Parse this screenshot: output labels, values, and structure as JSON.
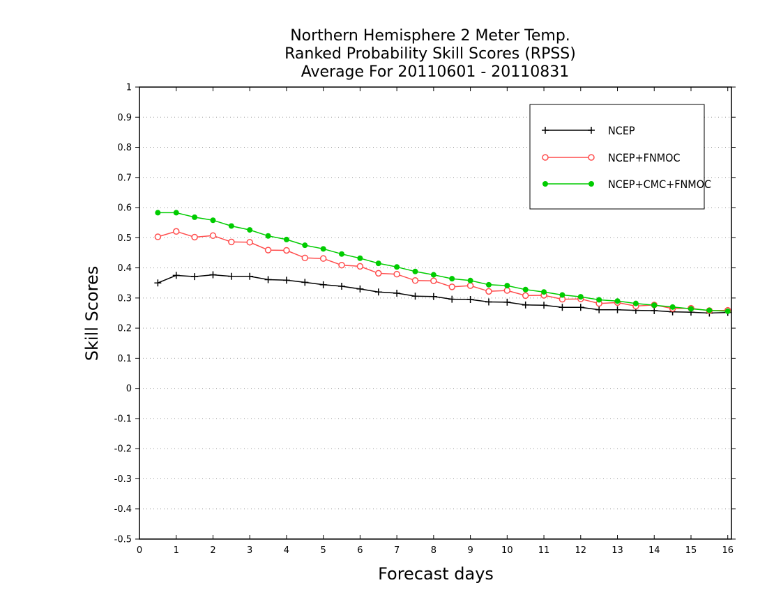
{
  "chart_data": {
    "type": "line",
    "title_lines": [
      "Northern Hemisphere 2 Meter Temp.",
      "Ranked Probability Skill Scores (RPSS)",
      "Average For 20110601 - 20110831"
    ],
    "xlabel": "Forecast days",
    "ylabel": "Skill Scores",
    "xlim": [
      0,
      16.1
    ],
    "ylim": [
      -0.5,
      1
    ],
    "x_ticks": [
      0,
      1,
      2,
      3,
      4,
      5,
      6,
      7,
      8,
      9,
      10,
      11,
      12,
      13,
      14,
      15,
      16
    ],
    "y_ticks": [
      -0.5,
      -0.4,
      -0.3,
      -0.2,
      -0.1,
      0,
      0.1,
      0.2,
      0.3,
      0.4,
      0.5,
      0.6,
      0.7,
      0.8,
      0.9,
      1
    ],
    "y_tick_labels": [
      "-0.5",
      "-0.4",
      "-0.3",
      "-0.2",
      "-0.1",
      "0",
      "0.1",
      "0.2",
      "0.3",
      "0.4",
      "0.5",
      "0.6",
      "0.7",
      "0.8",
      "0.9",
      "1"
    ],
    "grid": "horizontal dotted",
    "legend_position": "top-right",
    "x": [
      0.5,
      1,
      1.5,
      2,
      2.5,
      3,
      3.5,
      4,
      4.5,
      5,
      5.5,
      6,
      6.5,
      7,
      7.5,
      8,
      8.5,
      9,
      9.5,
      10,
      10.5,
      11,
      11.5,
      12,
      12.5,
      13,
      13.5,
      14,
      14.5,
      15,
      15.5,
      16
    ],
    "series": [
      {
        "name": "NCEP",
        "color": "#000000",
        "marker": "plus",
        "values": [
          0.35,
          0.375,
          0.371,
          0.377,
          0.372,
          0.372,
          0.361,
          0.359,
          0.352,
          0.344,
          0.339,
          0.33,
          0.32,
          0.316,
          0.306,
          0.305,
          0.296,
          0.295,
          0.287,
          0.286,
          0.277,
          0.276,
          0.269,
          0.269,
          0.261,
          0.261,
          0.259,
          0.258,
          0.254,
          0.253,
          0.25,
          0.252
        ]
      },
      {
        "name": "NCEP+FNMOC",
        "color": "#ff4d4d",
        "marker": "open-circle",
        "values": [
          0.503,
          0.521,
          0.502,
          0.507,
          0.486,
          0.485,
          0.459,
          0.458,
          0.433,
          0.431,
          0.409,
          0.405,
          0.382,
          0.379,
          0.358,
          0.357,
          0.337,
          0.341,
          0.322,
          0.325,
          0.308,
          0.309,
          0.296,
          0.297,
          0.282,
          0.285,
          0.273,
          0.277,
          0.265,
          0.266,
          0.258,
          0.259
        ]
      },
      {
        "name": "NCEP+CMC+FNMOC",
        "color": "#00cc00",
        "marker": "filled-circle",
        "values": [
          0.583,
          0.583,
          0.568,
          0.558,
          0.539,
          0.526,
          0.506,
          0.494,
          0.475,
          0.463,
          0.446,
          0.432,
          0.415,
          0.403,
          0.388,
          0.377,
          0.364,
          0.358,
          0.344,
          0.341,
          0.328,
          0.32,
          0.31,
          0.304,
          0.294,
          0.29,
          0.282,
          0.276,
          0.27,
          0.264,
          0.259,
          0.256
        ]
      }
    ]
  }
}
